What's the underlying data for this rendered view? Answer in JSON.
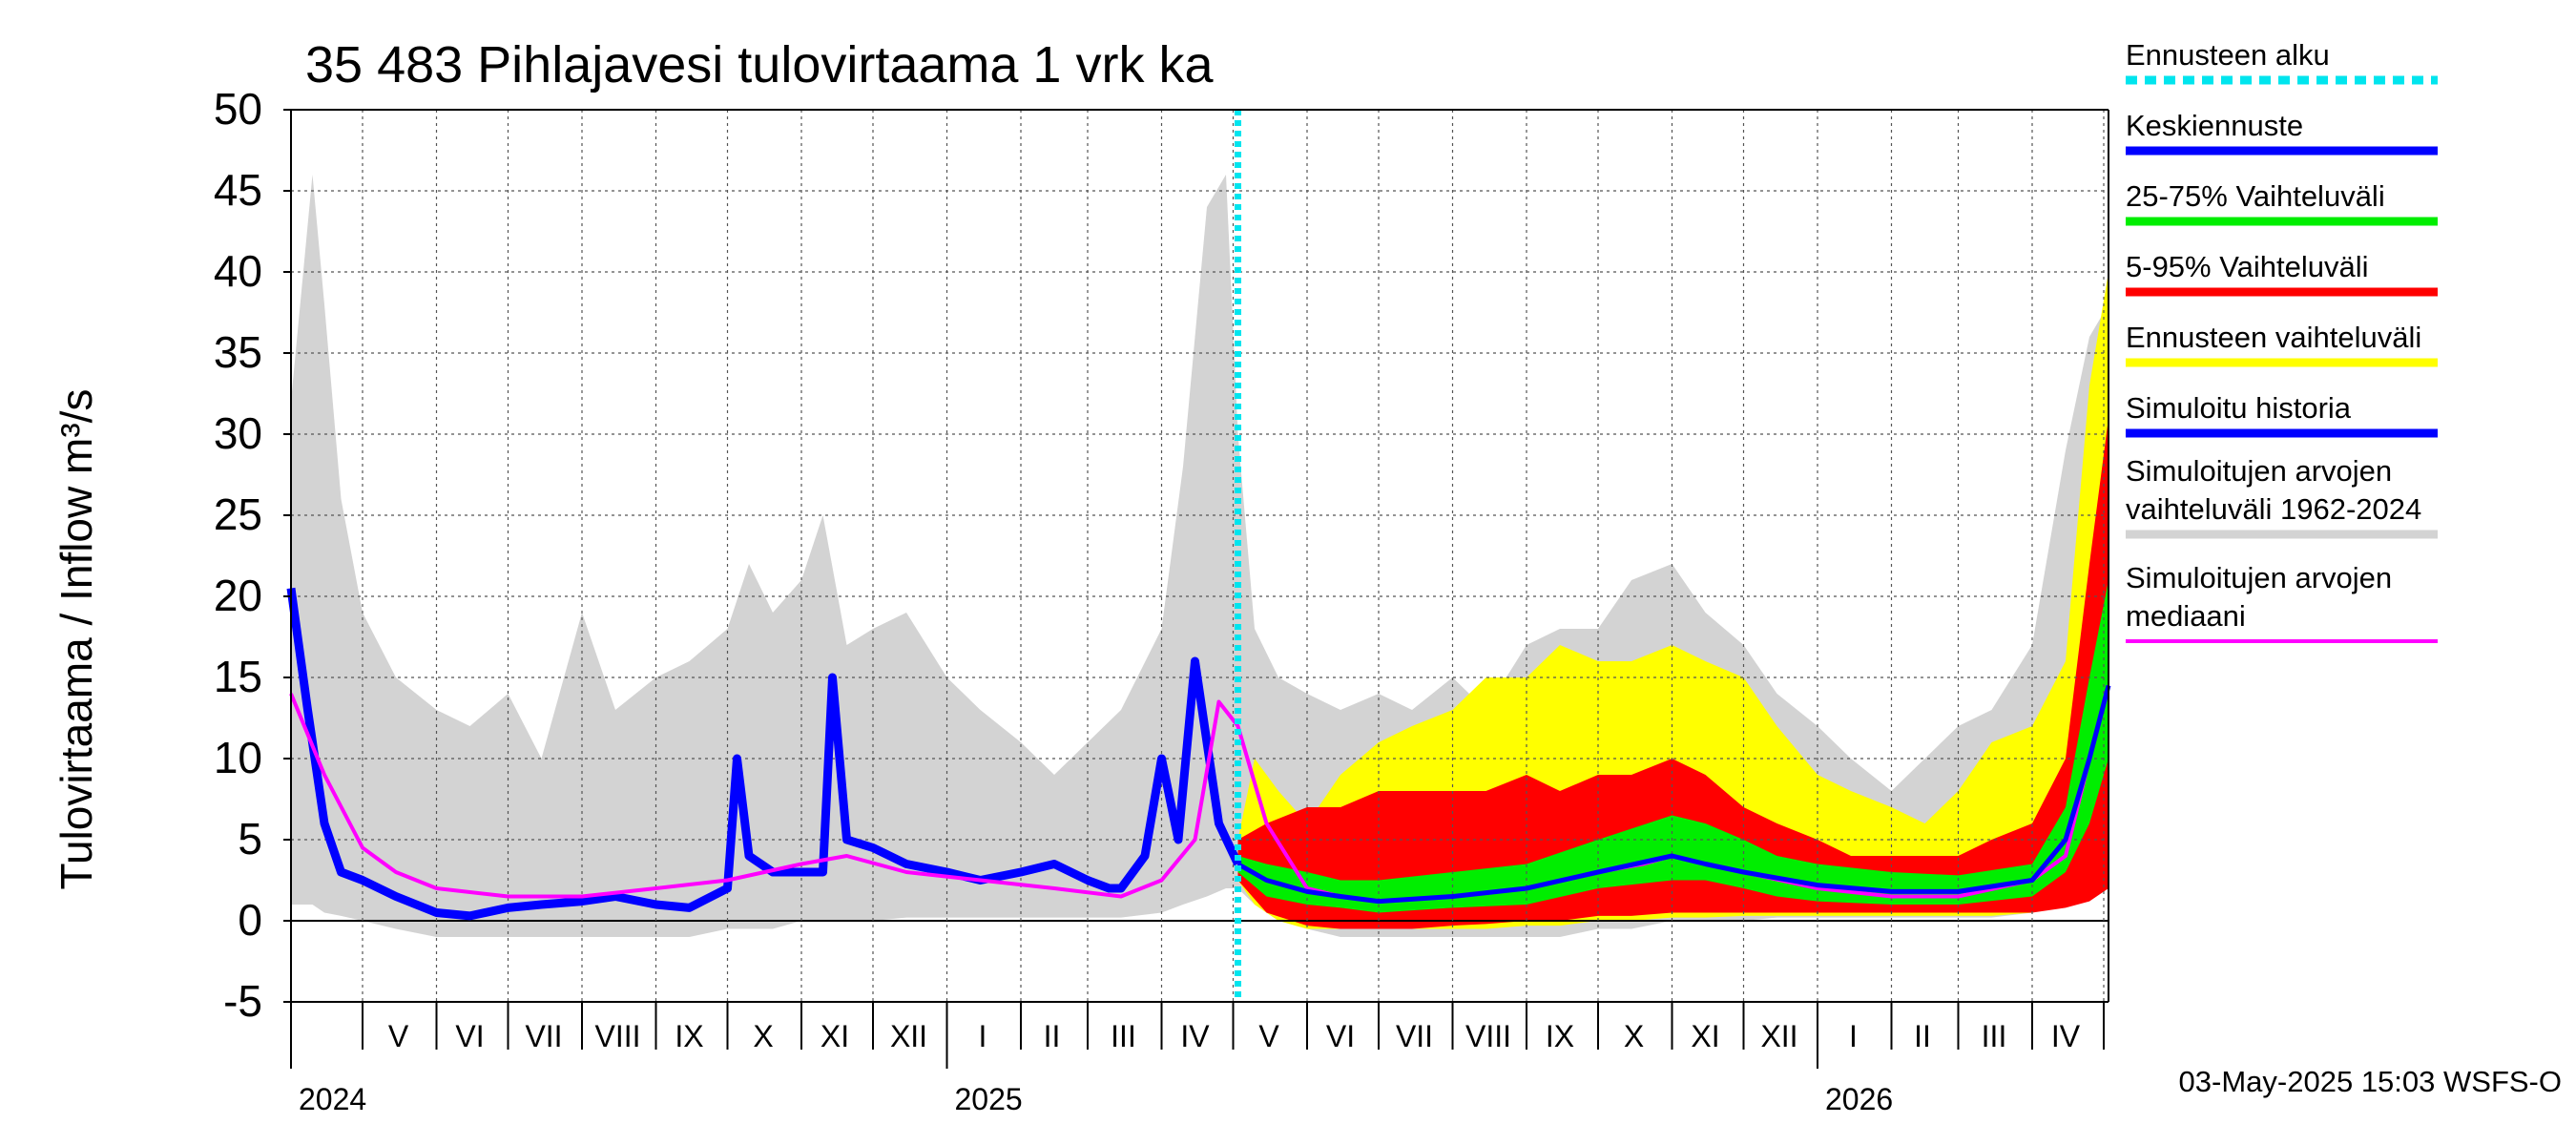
{
  "chart_data": {
    "type": "area",
    "title": "35 483 Pihlajavesi tulovirtaama 1 vrk ka",
    "ylabel": "Tulovirtaama / Inflow    m³/s",
    "ylim": [
      -5,
      50
    ],
    "yticks": [
      50,
      45,
      40,
      35,
      30,
      25,
      20,
      15,
      10,
      5,
      0,
      -5
    ],
    "xrange": [
      "2024-04-01",
      "2026-05-03"
    ],
    "forecast_start": "2025-05-03",
    "months": [
      {
        "label": "V",
        "mid": "2024-05-16"
      },
      {
        "label": "VI",
        "mid": "2024-06-15"
      },
      {
        "label": "VII",
        "mid": "2024-07-16"
      },
      {
        "label": "VIII",
        "mid": "2024-08-16"
      },
      {
        "label": "IX",
        "mid": "2024-09-15"
      },
      {
        "label": "X",
        "mid": "2024-10-16"
      },
      {
        "label": "XI",
        "mid": "2024-11-15"
      },
      {
        "label": "XII",
        "mid": "2024-12-16"
      },
      {
        "label": "I",
        "mid": "2025-01-16"
      },
      {
        "label": "II",
        "mid": "2025-02-14"
      },
      {
        "label": "III",
        "mid": "2025-03-16"
      },
      {
        "label": "IV",
        "mid": "2025-04-15"
      },
      {
        "label": "V",
        "mid": "2025-05-16"
      },
      {
        "label": "VI",
        "mid": "2025-06-15"
      },
      {
        "label": "VII",
        "mid": "2025-07-16"
      },
      {
        "label": "VIII",
        "mid": "2025-08-16"
      },
      {
        "label": "IX",
        "mid": "2025-09-15"
      },
      {
        "label": "X",
        "mid": "2025-10-16"
      },
      {
        "label": "XI",
        "mid": "2025-11-15"
      },
      {
        "label": "XII",
        "mid": "2025-12-16"
      },
      {
        "label": "I",
        "mid": "2026-01-16"
      },
      {
        "label": "II",
        "mid": "2026-02-14"
      },
      {
        "label": "III",
        "mid": "2026-03-16"
      },
      {
        "label": "IV",
        "mid": "2026-04-15"
      }
    ],
    "month_boundaries": [
      "2024-05-01",
      "2024-06-01",
      "2024-07-01",
      "2024-08-01",
      "2024-09-01",
      "2024-10-01",
      "2024-11-01",
      "2024-12-01",
      "2025-01-01",
      "2025-02-01",
      "2025-03-01",
      "2025-04-01",
      "2025-05-01",
      "2025-06-01",
      "2025-07-01",
      "2025-08-01",
      "2025-09-01",
      "2025-10-01",
      "2025-11-01",
      "2025-12-01",
      "2026-01-01",
      "2026-02-01",
      "2026-03-01",
      "2026-04-01",
      "2026-05-01"
    ],
    "years": [
      {
        "label": "2024",
        "date": "2024-04-01"
      },
      {
        "label": "2025",
        "date": "2025-01-01"
      },
      {
        "label": "2026",
        "date": "2026-01-01"
      }
    ],
    "legend": [
      {
        "key": "start",
        "label": "Ennusteen alku",
        "color": "#00e5ee",
        "style": "dotted"
      },
      {
        "key": "mean",
        "label": "Keskiennuste",
        "color": "#0000ff"
      },
      {
        "key": "p2575",
        "label": "25-75% Vaihteluväli",
        "color": "#00ee00"
      },
      {
        "key": "p595",
        "label": "5-95% Vaihteluväli",
        "color": "#ff0000"
      },
      {
        "key": "range",
        "label": "Ennusteen vaihteluväli",
        "color": "#ffff00"
      },
      {
        "key": "sim",
        "label": "Simuloitu historia",
        "color": "#0000ff"
      },
      {
        "key": "hist",
        "label": "Simuloitujen arvojen vaihteluväli 1962-2024",
        "label_lines": [
          "Simuloitujen arvojen",
          "vaihteluväli 1962-2024"
        ],
        "color": "#d3d3d3"
      },
      {
        "key": "median",
        "label": "Simuloitujen arvojen mediaani",
        "label_lines": [
          "Simuloitujen arvojen",
          "mediaani"
        ],
        "color": "#ff00ff"
      }
    ],
    "series": [
      {
        "name": "Simuloitu historia",
        "color": "#0000ff",
        "x": [
          "2024-04-01",
          "2024-04-08",
          "2024-04-15",
          "2024-04-22",
          "2024-05-01",
          "2024-05-15",
          "2024-06-01",
          "2024-06-15",
          "2024-07-01",
          "2024-07-15",
          "2024-08-01",
          "2024-08-15",
          "2024-09-01",
          "2024-09-15",
          "2024-10-01",
          "2024-10-05",
          "2024-10-10",
          "2024-10-20",
          "2024-11-01",
          "2024-11-10",
          "2024-11-14",
          "2024-11-20",
          "2024-12-01",
          "2024-12-15",
          "2025-01-01",
          "2025-01-15",
          "2025-02-01",
          "2025-02-15",
          "2025-03-01",
          "2025-03-10",
          "2025-03-15",
          "2025-03-25",
          "2025-04-01",
          "2025-04-08",
          "2025-04-15",
          "2025-04-25",
          "2025-05-03"
        ],
        "y": [
          20.5,
          13,
          6,
          3,
          2.5,
          1.5,
          0.5,
          0.3,
          0.8,
          1,
          1.2,
          1.5,
          1,
          0.8,
          2,
          10,
          4,
          3,
          3,
          3,
          15,
          5,
          4.5,
          3.5,
          3,
          2.5,
          3,
          3.5,
          2.5,
          2,
          2,
          4,
          10,
          5,
          16,
          6,
          3.5
        ]
      },
      {
        "name": "Simuloitujen arvojen mediaani",
        "color": "#ff00ff",
        "x": [
          "2024-04-01",
          "2024-04-15",
          "2024-05-01",
          "2024-05-15",
          "2024-06-01",
          "2024-07-01",
          "2024-08-01",
          "2024-09-01",
          "2024-10-01",
          "2024-11-01",
          "2024-11-20",
          "2024-12-15",
          "2025-01-15",
          "2025-02-15",
          "2025-03-15",
          "2025-04-01",
          "2025-04-15",
          "2025-04-25",
          "2025-05-03",
          "2025-05-15",
          "2025-06-01",
          "2025-06-15",
          "2025-07-01",
          "2025-08-01",
          "2025-09-01",
          "2025-10-01",
          "2025-10-20",
          "2025-11-01",
          "2025-11-15",
          "2025-12-01",
          "2026-01-01",
          "2026-02-01",
          "2026-03-01",
          "2026-04-01",
          "2026-04-15",
          "2026-04-25",
          "2026-05-03"
        ],
        "y": [
          14,
          9,
          4.5,
          3,
          2,
          1.5,
          1.5,
          2,
          2.5,
          3.5,
          4,
          3,
          2.5,
          2,
          1.5,
          2.5,
          5,
          13.5,
          12,
          6,
          2,
          1.5,
          1.2,
          1.5,
          2,
          3,
          3.5,
          4,
          3.5,
          3,
          2,
          1.5,
          1.5,
          2.5,
          4,
          10,
          14.5
        ]
      },
      {
        "name": "Keskiennuste",
        "color": "#0000ff",
        "x": [
          "2025-05-03",
          "2025-05-15",
          "2025-06-01",
          "2025-06-15",
          "2025-07-01",
          "2025-08-01",
          "2025-09-01",
          "2025-10-01",
          "2025-11-01",
          "2025-11-15",
          "2025-12-01",
          "2026-01-01",
          "2026-02-01",
          "2026-03-01",
          "2026-04-01",
          "2026-04-15",
          "2026-04-25",
          "2026-05-03"
        ],
        "y": [
          3.5,
          2.5,
          1.8,
          1.5,
          1.2,
          1.5,
          2,
          3,
          4,
          3.5,
          3,
          2.2,
          1.8,
          1.8,
          2.5,
          5,
          10,
          14.5
        ]
      }
    ],
    "bands": [
      {
        "name": "Simuloitujen arvojen vaihteluväli 1962-2024",
        "color": "#d3d3d3",
        "x": [
          "2024-04-01",
          "2024-04-10",
          "2024-04-15",
          "2024-04-22",
          "2024-05-01",
          "2024-05-15",
          "2024-06-01",
          "2024-06-15",
          "2024-07-01",
          "2024-07-15",
          "2024-08-01",
          "2024-08-15",
          "2024-09-01",
          "2024-09-15",
          "2024-10-01",
          "2024-10-10",
          "2024-10-20",
          "2024-11-01",
          "2024-11-10",
          "2024-11-20",
          "2024-12-01",
          "2024-12-15",
          "2025-01-01",
          "2025-01-15",
          "2025-02-01",
          "2025-02-15",
          "2025-03-01",
          "2025-03-15",
          "2025-04-01",
          "2025-04-10",
          "2025-04-20",
          "2025-04-28",
          "2025-05-03",
          "2025-05-10",
          "2025-05-20",
          "2025-06-01",
          "2025-06-15",
          "2025-07-01",
          "2025-07-15",
          "2025-08-01",
          "2025-08-15",
          "2025-09-01",
          "2025-09-15",
          "2025-10-01",
          "2025-10-15",
          "2025-11-01",
          "2025-11-15",
          "2025-12-01",
          "2025-12-15",
          "2026-01-01",
          "2026-01-15",
          "2026-02-01",
          "2026-02-15",
          "2026-03-01",
          "2026-03-15",
          "2026-04-01",
          "2026-04-15",
          "2026-04-25",
          "2026-05-03"
        ],
        "low": [
          1,
          1,
          0.5,
          0.3,
          0,
          -0.5,
          -1,
          -1,
          -1,
          -1,
          -1,
          -1,
          -1,
          -1,
          -0.5,
          -0.5,
          -0.5,
          0,
          0,
          0,
          0,
          0.2,
          0.2,
          0.2,
          0.2,
          0.2,
          0.2,
          0.2,
          0.5,
          1,
          1.5,
          2,
          2,
          1,
          0,
          -0.5,
          -1,
          -1,
          -1,
          -1,
          -1,
          -1,
          -1,
          -0.5,
          -0.5,
          0,
          0,
          0,
          0.2,
          0.2,
          0.2,
          0.2,
          0.2,
          0.2,
          0.2,
          0.5,
          1,
          1.5,
          2
        ],
        "high": [
          32,
          46,
          38,
          26,
          19,
          15,
          13,
          12,
          14,
          10,
          19,
          13,
          15,
          16,
          18,
          22,
          19,
          21,
          25,
          17,
          18,
          19,
          15,
          13,
          11,
          9,
          11,
          13,
          18,
          28,
          44,
          46,
          30,
          18,
          15,
          14,
          13,
          14,
          13,
          15,
          13,
          17,
          18,
          18,
          21,
          22,
          19,
          17,
          14,
          12,
          10,
          8,
          10,
          12,
          13,
          17,
          29,
          36,
          38
        ]
      },
      {
        "name": "Ennusteen vaihteluväli",
        "color": "#ffff00",
        "x": [
          "2025-05-03",
          "2025-05-10",
          "2025-05-20",
          "2025-06-01",
          "2025-06-15",
          "2025-07-01",
          "2025-07-15",
          "2025-08-01",
          "2025-08-15",
          "2025-09-01",
          "2025-09-15",
          "2025-10-01",
          "2025-10-15",
          "2025-11-01",
          "2025-11-15",
          "2025-12-01",
          "2025-12-15",
          "2026-01-01",
          "2026-01-15",
          "2026-02-01",
          "2026-02-15",
          "2026-03-01",
          "2026-03-15",
          "2026-04-01",
          "2026-04-15",
          "2026-04-25",
          "2026-05-03"
        ],
        "low": [
          2.5,
          1,
          0,
          -0.5,
          -0.5,
          -0.5,
          -0.5,
          -0.5,
          -0.5,
          -0.3,
          -0.3,
          0,
          0,
          0.2,
          0.2,
          0.3,
          0.3,
          0.3,
          0.3,
          0.3,
          0.3,
          0.3,
          0.3,
          0.5,
          1,
          1.5,
          2
        ],
        "high": [
          5,
          10,
          8,
          6,
          9,
          11,
          12,
          13,
          15,
          15,
          17,
          16,
          16,
          17,
          16,
          15,
          12,
          9,
          8,
          7,
          6,
          8,
          11,
          12,
          16,
          33,
          40
        ]
      },
      {
        "name": "5-95% Vaihteluväli",
        "color": "#ff0000",
        "x": [
          "2025-05-03",
          "2025-05-15",
          "2025-06-01",
          "2025-06-15",
          "2025-07-01",
          "2025-07-15",
          "2025-08-01",
          "2025-08-15",
          "2025-09-01",
          "2025-09-15",
          "2025-10-01",
          "2025-10-15",
          "2025-11-01",
          "2025-11-15",
          "2025-12-01",
          "2025-12-15",
          "2026-01-01",
          "2026-01-15",
          "2026-02-01",
          "2026-02-15",
          "2026-03-01",
          "2026-03-15",
          "2026-04-01",
          "2026-04-15",
          "2026-04-25",
          "2026-05-03"
        ],
        "low": [
          2.5,
          0.5,
          -0.3,
          -0.5,
          -0.5,
          -0.5,
          -0.3,
          -0.2,
          0,
          0,
          0.3,
          0.3,
          0.5,
          0.5,
          0.5,
          0.5,
          0.5,
          0.5,
          0.5,
          0.5,
          0.5,
          0.5,
          0.5,
          0.8,
          1.2,
          2
        ],
        "high": [
          5,
          6,
          7,
          7,
          8,
          8,
          8,
          8,
          9,
          8,
          9,
          9,
          10,
          9,
          7,
          6,
          5,
          4,
          4,
          4,
          4,
          5,
          6,
          10,
          22,
          31
        ]
      },
      {
        "name": "25-75% Vaihteluväli",
        "color": "#00ee00",
        "x": [
          "2025-05-03",
          "2025-05-15",
          "2025-06-01",
          "2025-06-15",
          "2025-07-01",
          "2025-08-01",
          "2025-09-01",
          "2025-10-01",
          "2025-11-01",
          "2025-11-15",
          "2025-12-01",
          "2025-12-15",
          "2026-01-01",
          "2026-02-01",
          "2026-03-01",
          "2026-04-01",
          "2026-04-15",
          "2026-04-25",
          "2026-05-03"
        ],
        "low": [
          3,
          1.5,
          1,
          0.8,
          0.5,
          0.8,
          1,
          2,
          2.5,
          2.5,
          2,
          1.5,
          1.2,
          1,
          1,
          1.5,
          3,
          6,
          10
        ],
        "high": [
          4,
          3.5,
          3,
          2.5,
          2.5,
          3,
          3.5,
          5,
          6.5,
          6,
          5,
          4,
          3.5,
          3,
          2.8,
          3.5,
          7,
          15,
          21
        ]
      }
    ]
  },
  "footer": "03-May-2025 15:03 WSFS-O"
}
